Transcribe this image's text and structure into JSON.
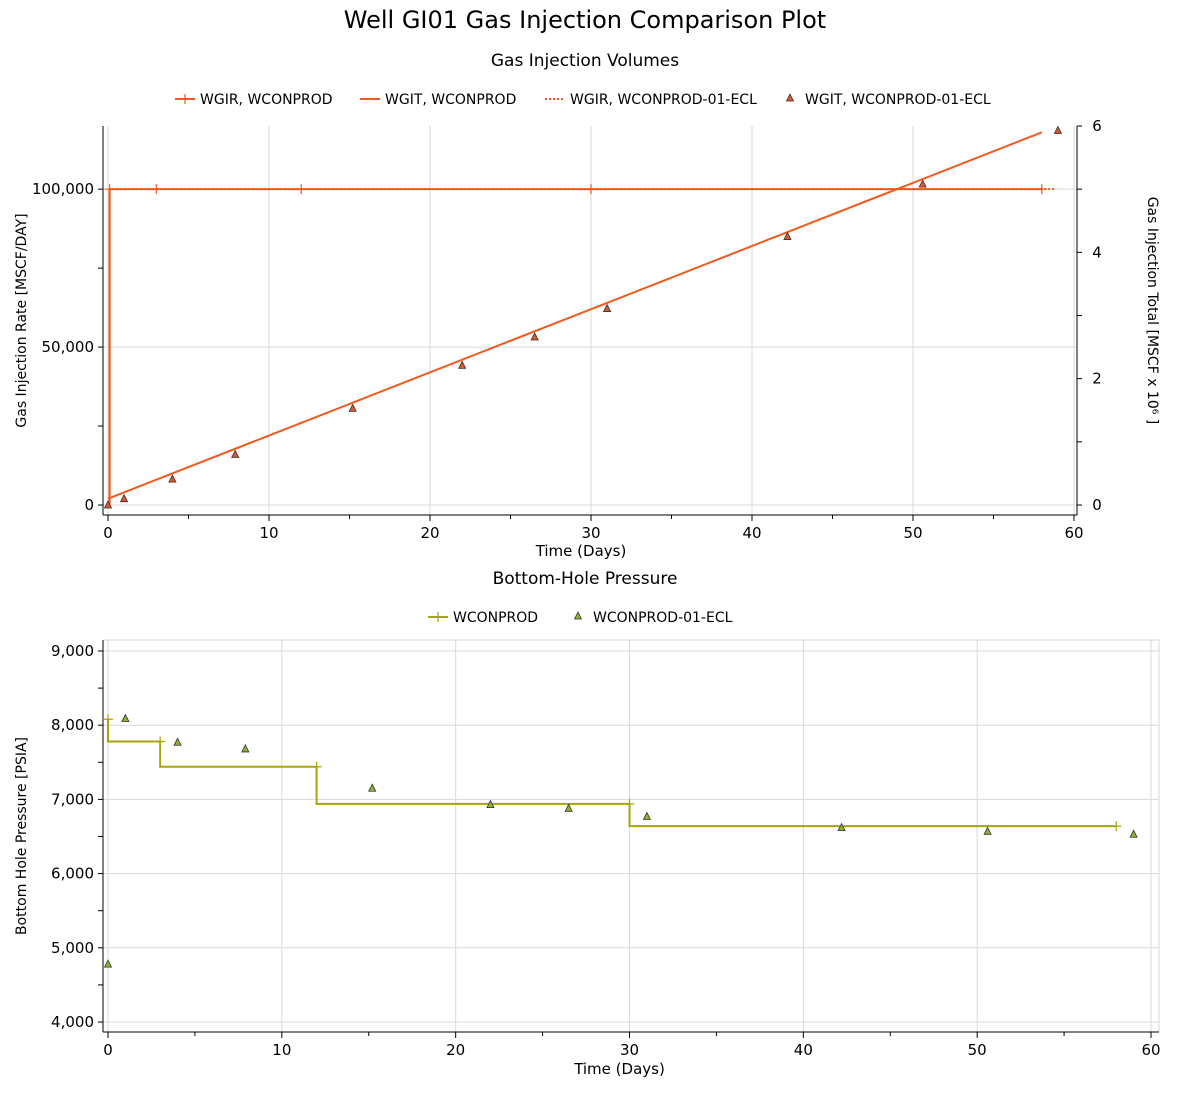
{
  "title": "Well GI01 Gas Injection Comparison Plot",
  "chart_data": [
    {
      "type": "line",
      "title": "Gas Injection Volumes",
      "xlabel": "Time (Days)",
      "ylabel": "Gas Injection Rate [MSCF/DAY]",
      "y2label": "Gas Injection Total [MSCF x 10⁶ ]",
      "xlim": [
        0,
        60
      ],
      "ylim": [
        0,
        120000
      ],
      "y2lim": [
        0,
        6
      ],
      "xticks": [
        "0",
        "10",
        "20",
        "30",
        "40",
        "50",
        "60"
      ],
      "yticks": [
        "0",
        "50,000",
        "100,000"
      ],
      "y2ticks": [
        "0",
        "2",
        "4",
        "6"
      ],
      "grid": true,
      "legend": "top-center",
      "series": [
        {
          "name": "WGIR, WCONPROD",
          "axis": "left",
          "style": "step-marker-plus",
          "color": "#F05A1E",
          "x": [
            0,
            0.1,
            3,
            12,
            30,
            58
          ],
          "y": [
            0,
            100000,
            100000,
            100000,
            100000,
            100000
          ]
        },
        {
          "name": "WGIT, WCONPROD",
          "axis": "right",
          "style": "line",
          "color": "#F05A1E",
          "x": [
            0,
            58
          ],
          "y": [
            0.1,
            5.9
          ]
        },
        {
          "name": "WGIR, WCONPROD-01-ECL",
          "axis": "left",
          "style": "step-dotted",
          "color": "#F05A1E",
          "x": [
            0,
            0.1,
            58.9
          ],
          "y": [
            0,
            100000,
            100000
          ]
        },
        {
          "name": "WGIT, WCONPROD-01-ECL",
          "axis": "right",
          "style": "triangle-marker",
          "color": "#E0552A",
          "x": [
            0,
            1,
            4,
            7.9,
            15.2,
            22,
            26.5,
            31,
            42.2,
            50.6,
            59
          ],
          "y": [
            0,
            0.1,
            0.41,
            0.8,
            1.53,
            2.21,
            2.66,
            3.11,
            4.25,
            5.08,
            5.93
          ]
        }
      ]
    },
    {
      "type": "line",
      "title": "Bottom-Hole Pressure",
      "xlabel": "Time (Days)",
      "ylabel": "Bottom Hole Pressure [PSIA]",
      "xlim": [
        0,
        60
      ],
      "ylim": [
        4000,
        9000
      ],
      "xticks": [
        "0",
        "10",
        "20",
        "30",
        "40",
        "50",
        "60"
      ],
      "yticks": [
        "4,000",
        "5,000",
        "6,000",
        "7,000",
        "8,000",
        "9,000"
      ],
      "grid": true,
      "legend": "top-center",
      "series": [
        {
          "name": "WCONPROD",
          "style": "step-marker-plus",
          "color": "#A6A60A",
          "x": [
            0,
            3,
            12,
            30,
            58
          ],
          "y": [
            7780,
            7440,
            6940,
            6640,
            6640
          ],
          "marker_y": [
            8080,
            7780,
            7440,
            6940,
            6640
          ]
        },
        {
          "name": "WCONPROD-01-ECL",
          "style": "triangle-marker",
          "color": "#8AB42A",
          "x": [
            0,
            1,
            4,
            7.9,
            15.2,
            22,
            26.5,
            31,
            42.2,
            50.6,
            59
          ],
          "y": [
            4780,
            8090,
            7770,
            7680,
            7150,
            6930,
            6880,
            6770,
            6620,
            6570,
            6530
          ]
        }
      ]
    }
  ]
}
